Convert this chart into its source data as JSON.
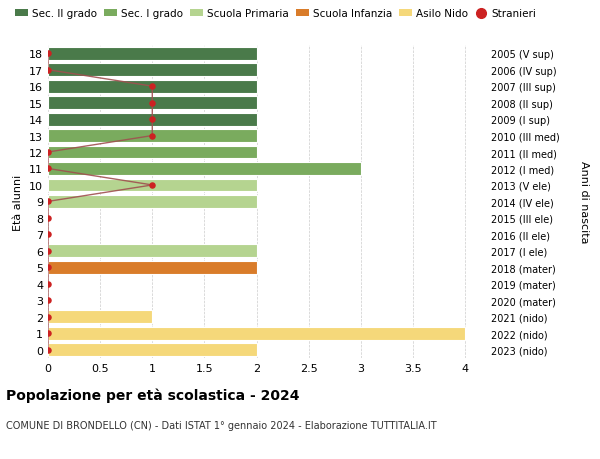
{
  "ages": [
    18,
    17,
    16,
    15,
    14,
    13,
    12,
    11,
    10,
    9,
    8,
    7,
    6,
    5,
    4,
    3,
    2,
    1,
    0
  ],
  "years": [
    "2005 (V sup)",
    "2006 (IV sup)",
    "2007 (III sup)",
    "2008 (II sup)",
    "2009 (I sup)",
    "2010 (III med)",
    "2011 (II med)",
    "2012 (I med)",
    "2013 (V ele)",
    "2014 (IV ele)",
    "2015 (III ele)",
    "2016 (II ele)",
    "2017 (I ele)",
    "2018 (mater)",
    "2019 (mater)",
    "2020 (mater)",
    "2021 (nido)",
    "2022 (nido)",
    "2023 (nido)"
  ],
  "bar_values": [
    2,
    2,
    2,
    2,
    2,
    2,
    2,
    3,
    2,
    2,
    0,
    0,
    2,
    2,
    0,
    0,
    1,
    4,
    2
  ],
  "color_per_age": {
    "18": "#4a7a4a",
    "17": "#4a7a4a",
    "16": "#4a7a4a",
    "15": "#4a7a4a",
    "14": "#4a7a4a",
    "13": "#7aab5e",
    "12": "#7aab5e",
    "11": "#7aab5e",
    "10": "#b5d490",
    "9": "#b5d490",
    "8": "#b5d490",
    "7": "#b5d490",
    "6": "#b5d490",
    "5": "#d97c2a",
    "4": "#d97c2a",
    "3": "#d97c2a",
    "2": "#f5d87a",
    "1": "#f5d87a",
    "0": "#f5d87a"
  },
  "stranieri_x": [
    0,
    0,
    1,
    1,
    1,
    1,
    0,
    0,
    1,
    0,
    0,
    0,
    0,
    0,
    0,
    0,
    0,
    0,
    0
  ],
  "legend_labels": [
    "Sec. II grado",
    "Sec. I grado",
    "Scuola Primaria",
    "Scuola Infanzia",
    "Asilo Nido",
    "Stranieri"
  ],
  "legend_colors": [
    "#4a7a4a",
    "#7aab5e",
    "#b5d490",
    "#d97c2a",
    "#f5d87a",
    "#cc2222"
  ],
  "ylabel_left": "Età alunni",
  "ylabel_right": "Anni di nascita",
  "title": "Popolazione per età scolastica - 2024",
  "subtitle": "COMUNE DI BRONDELLO (CN) - Dati ISTAT 1° gennaio 2024 - Elaborazione TUTTITALIA.IT",
  "xlim": [
    0,
    4.2
  ],
  "xticks": [
    0,
    0.5,
    1.0,
    1.5,
    2.0,
    2.5,
    3.0,
    3.5,
    4.0
  ],
  "bg_color": "#ffffff",
  "grid_color": "#cccccc",
  "stranieri_dot_color": "#cc2222",
  "stranieri_line_color": "#a05050"
}
